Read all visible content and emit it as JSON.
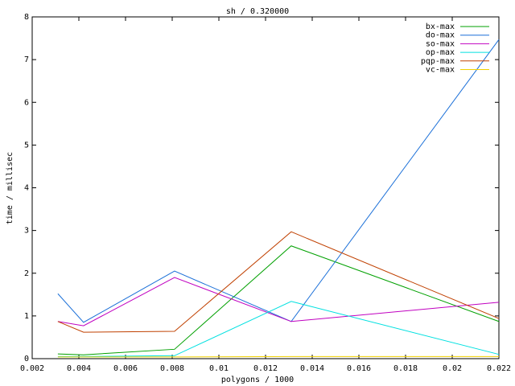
{
  "chart_data": {
    "type": "line",
    "title": "sh / 0.320000",
    "x_label": "polygons / 1000",
    "y_label": "time / millisec",
    "x": [
      0.0031,
      0.0042,
      0.0081,
      0.0131,
      0.022
    ],
    "series": [
      {
        "name": "bx-max",
        "color": "#00a000",
        "values": [
          0.11,
          0.09,
          0.22,
          2.64,
          0.87
        ]
      },
      {
        "name": "do-max",
        "color": "#1a6fd8",
        "values": [
          1.52,
          0.85,
          2.05,
          0.87,
          7.47
        ]
      },
      {
        "name": "so-max",
        "color": "#c000c0",
        "values": [
          0.87,
          0.77,
          1.9,
          0.87,
          1.32
        ]
      },
      {
        "name": "op-max",
        "color": "#00e0e0",
        "values": [
          0.05,
          0.05,
          0.07,
          1.34,
          0.1
        ]
      },
      {
        "name": "pqp-max",
        "color": "#c04000",
        "values": [
          0.87,
          0.62,
          0.64,
          2.97,
          0.94
        ]
      },
      {
        "name": "vc-max",
        "color": "#f0d000",
        "values": [
          0.04,
          0.04,
          0.04,
          0.05,
          0.05
        ]
      }
    ],
    "xlim": [
      0.002,
      0.022
    ],
    "xticks": [
      0.002,
      0.004,
      0.006,
      0.008,
      0.01,
      0.012,
      0.014,
      0.016,
      0.018,
      0.02,
      0.022
    ],
    "ylim": [
      0,
      8
    ],
    "yticks": [
      0,
      1,
      2,
      3,
      4,
      5,
      6,
      7,
      8
    ],
    "legend": "top-right"
  }
}
